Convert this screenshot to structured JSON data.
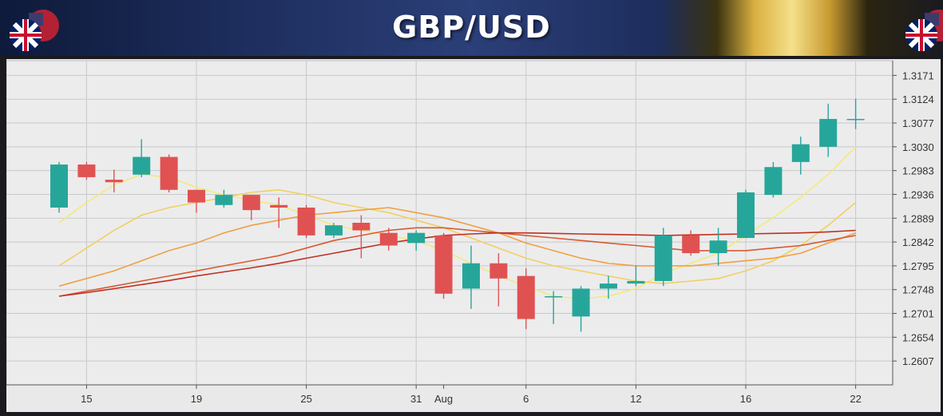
{
  "header": {
    "title": "GBP/USD"
  },
  "colors": {
    "bull": "#26a69a",
    "bear": "#e05252",
    "ma_fast": "#f2ea7a",
    "ma_mid": "#f0d060",
    "ma_slow": "#f0a040",
    "ma_long": "#d85a30",
    "ma_longest": "#c03020"
  },
  "chart_data": {
    "type": "candlestick",
    "title": "GBP/USD",
    "xlabel": "",
    "ylabel": "",
    "ylim": [
      1.256,
      1.32
    ],
    "y_ticks": [
      "1.3171",
      "1.3124",
      "1.3077",
      "1.3030",
      "1.2983",
      "1.2936",
      "1.2889",
      "1.2842",
      "1.2795",
      "1.2748",
      "1.2701",
      "1.2654",
      "1.2607"
    ],
    "x_ticks": [
      "15",
      "19",
      "25",
      "31",
      "Aug",
      "6",
      "12",
      "16",
      "22"
    ],
    "candles": [
      {
        "o": 1.291,
        "h": 1.3,
        "l": 1.29,
        "c": 1.2995
      },
      {
        "o": 1.2995,
        "h": 1.3,
        "l": 1.2965,
        "c": 1.297
      },
      {
        "o": 1.2965,
        "h": 1.2985,
        "l": 1.294,
        "c": 1.296
      },
      {
        "o": 1.2975,
        "h": 1.3045,
        "l": 1.297,
        "c": 1.301
      },
      {
        "o": 1.301,
        "h": 1.3015,
        "l": 1.294,
        "c": 1.2945
      },
      {
        "o": 1.2945,
        "h": 1.2945,
        "l": 1.29,
        "c": 1.292
      },
      {
        "o": 1.2915,
        "h": 1.2945,
        "l": 1.291,
        "c": 1.2935
      },
      {
        "o": 1.2935,
        "h": 1.2935,
        "l": 1.2885,
        "c": 1.2905
      },
      {
        "o": 1.2915,
        "h": 1.293,
        "l": 1.287,
        "c": 1.291
      },
      {
        "o": 1.291,
        "h": 1.2915,
        "l": 1.285,
        "c": 1.2855
      },
      {
        "o": 1.2855,
        "h": 1.288,
        "l": 1.285,
        "c": 1.2875
      },
      {
        "o": 1.288,
        "h": 1.2895,
        "l": 1.281,
        "c": 1.2865
      },
      {
        "o": 1.286,
        "h": 1.287,
        "l": 1.2825,
        "c": 1.2835
      },
      {
        "o": 1.284,
        "h": 1.2865,
        "l": 1.2825,
        "c": 1.286
      },
      {
        "o": 1.2855,
        "h": 1.286,
        "l": 1.273,
        "c": 1.274
      },
      {
        "o": 1.275,
        "h": 1.2835,
        "l": 1.271,
        "c": 1.28
      },
      {
        "o": 1.28,
        "h": 1.282,
        "l": 1.2715,
        "c": 1.277
      },
      {
        "o": 1.2775,
        "h": 1.279,
        "l": 1.267,
        "c": 1.269
      },
      {
        "o": 1.2735,
        "h": 1.2745,
        "l": 1.268,
        "c": 1.2735
      },
      {
        "o": 1.2695,
        "h": 1.2755,
        "l": 1.2665,
        "c": 1.275
      },
      {
        "o": 1.275,
        "h": 1.2775,
        "l": 1.273,
        "c": 1.276
      },
      {
        "o": 1.276,
        "h": 1.2795,
        "l": 1.2755,
        "c": 1.2765
      },
      {
        "o": 1.2765,
        "h": 1.287,
        "l": 1.2755,
        "c": 1.2855
      },
      {
        "o": 1.2855,
        "h": 1.2865,
        "l": 1.2815,
        "c": 1.282
      },
      {
        "o": 1.282,
        "h": 1.287,
        "l": 1.2795,
        "c": 1.2845
      },
      {
        "o": 1.285,
        "h": 1.2945,
        "l": 1.285,
        "c": 1.294
      },
      {
        "o": 1.2935,
        "h": 1.3,
        "l": 1.293,
        "c": 1.299
      },
      {
        "o": 1.3,
        "h": 1.305,
        "l": 1.2975,
        "c": 1.3035
      },
      {
        "o": 1.303,
        "h": 1.3115,
        "l": 1.301,
        "c": 1.3085
      },
      {
        "o": 1.3085,
        "h": 1.3125,
        "l": 1.3065,
        "c": 1.3085
      }
    ],
    "moving_averages": [
      {
        "color_key": "ma_fast",
        "values": [
          1.288,
          1.292,
          1.2955,
          1.2975,
          1.297,
          1.295,
          1.2935,
          1.2925,
          1.2915,
          1.2895,
          1.2875,
          1.2865,
          1.2855,
          1.2845,
          1.2825,
          1.28,
          1.2775,
          1.2755,
          1.2735,
          1.273,
          1.2735,
          1.275,
          1.278,
          1.28,
          1.282,
          1.2855,
          1.289,
          1.293,
          1.2975,
          1.303
        ]
      },
      {
        "color_key": "ma_mid",
        "values": [
          1.2795,
          1.283,
          1.2865,
          1.2895,
          1.291,
          1.292,
          1.293,
          1.294,
          1.2945,
          1.2935,
          1.292,
          1.291,
          1.29,
          1.2885,
          1.287,
          1.285,
          1.283,
          1.281,
          1.2795,
          1.2785,
          1.2775,
          1.2765,
          1.276,
          1.2765,
          1.277,
          1.2785,
          1.2805,
          1.2835,
          1.2875,
          1.292
        ]
      },
      {
        "color_key": "ma_slow",
        "values": [
          1.2755,
          1.277,
          1.2785,
          1.2805,
          1.2825,
          1.284,
          1.286,
          1.2875,
          1.2885,
          1.2895,
          1.29,
          1.2905,
          1.291,
          1.29,
          1.289,
          1.2875,
          1.286,
          1.284,
          1.2825,
          1.281,
          1.28,
          1.2795,
          1.2795,
          1.2795,
          1.28,
          1.2805,
          1.281,
          1.282,
          1.284,
          1.286
        ]
      },
      {
        "color_key": "ma_long",
        "values": [
          1.2735,
          1.2745,
          1.2755,
          1.2765,
          1.2775,
          1.2785,
          1.2795,
          1.2805,
          1.2815,
          1.283,
          1.2845,
          1.2855,
          1.2865,
          1.287,
          1.287,
          1.2865,
          1.286,
          1.2855,
          1.285,
          1.2845,
          1.284,
          1.2835,
          1.283,
          1.2825,
          1.2825,
          1.2825,
          1.283,
          1.2835,
          1.2845,
          1.2855
        ]
      },
      {
        "color_key": "ma_longest",
        "values": [
          1.2735,
          1.2742,
          1.275,
          1.2758,
          1.2766,
          1.2775,
          1.2783,
          1.2791,
          1.28,
          1.281,
          1.282,
          1.283,
          1.284,
          1.2848,
          1.2855,
          1.2858,
          1.286,
          1.286,
          1.2859,
          1.2858,
          1.2857,
          1.2856,
          1.2855,
          1.2856,
          1.2857,
          1.2858,
          1.2859,
          1.286,
          1.2862,
          1.2865
        ]
      }
    ]
  }
}
